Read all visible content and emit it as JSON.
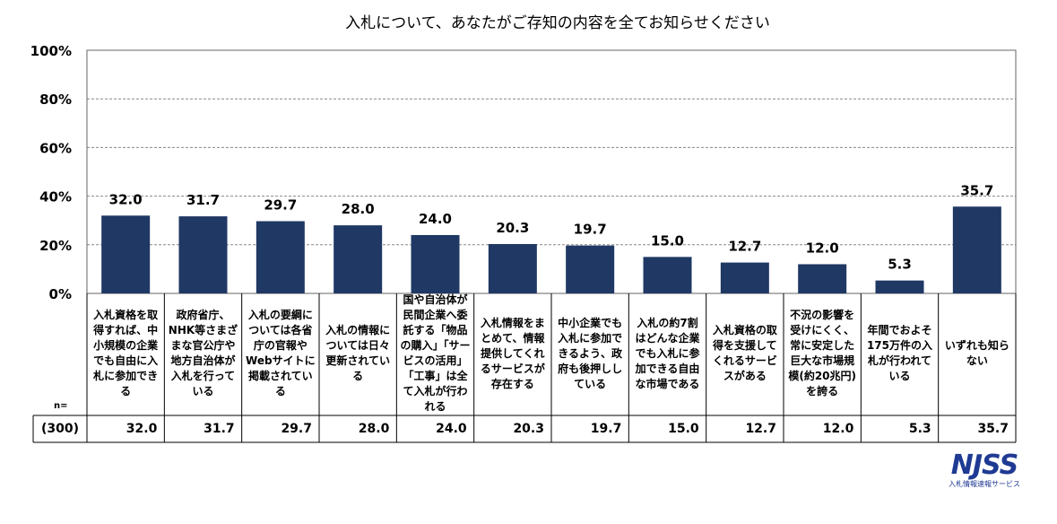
{
  "chart_data": {
    "type": "bar",
    "title": "入札について、あなたがご存知の内容を全てお知らせください",
    "y_ticks": [
      "0%",
      "20%",
      "40%",
      "60%",
      "80%",
      "100%"
    ],
    "ylim": [
      0,
      100
    ],
    "grid": true,
    "bar_color": "#1f3864",
    "categories": [
      "入札資格を取得すれば、中小規模の企業でも自由に入札に参加できる",
      "政府省庁、NHK等さまざまな官公庁や地方自治体が入札を行っている",
      "入札の要綱については各省庁の官報やWebサイトに掲載されている",
      "入札の情報については日々更新されている",
      "国や自治体が民間企業へ委託する「物品の購入」「サービスの活用」「工事」は全て入札が行われる",
      "入札情報をまとめて、情報提供してくれるサービスが存在する",
      "中小企業でも入札に参加できるよう、政府も後押ししている",
      "入札の約7割はどんな企業でも入札に参加できる自由な市場である",
      "入札資格の取得を支援してくれるサービスがある",
      "不況の影響を受けにくく、常に安定した巨大な市場規模(約20兆円)を誇る",
      "年間でおよそ175万件の入札が行われている",
      "いずれも知らない"
    ],
    "values": [
      32.0,
      31.7,
      29.7,
      28.0,
      24.0,
      20.3,
      19.7,
      15.0,
      12.7,
      12.0,
      5.3,
      35.7
    ],
    "value_labels": [
      "32.0",
      "31.7",
      "29.7",
      "28.0",
      "24.0",
      "20.3",
      "19.7",
      "15.0",
      "12.7",
      "12.0",
      "5.3",
      "35.7"
    ]
  },
  "table": {
    "n_header": "n=",
    "n_value": "(300)"
  },
  "logo": {
    "mark": "NJSS",
    "subtitle": "入札情報速報サービス"
  }
}
